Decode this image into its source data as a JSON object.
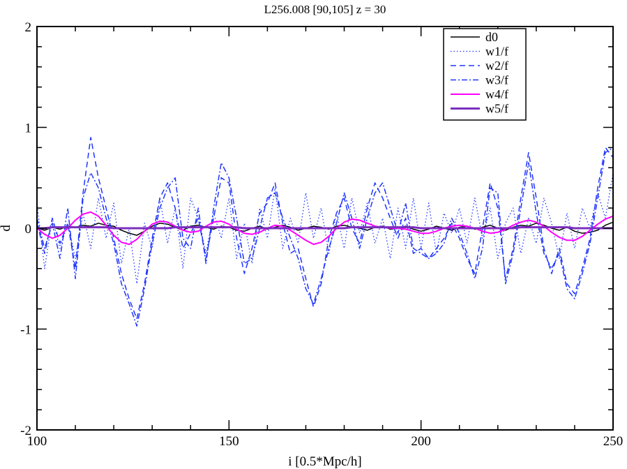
{
  "chart_data": {
    "type": "line",
    "title": "L256.008 [90,105] z = 30",
    "xlabel": "i [0.5*Mpc/h]",
    "ylabel": "d",
    "xlim": [
      100,
      250
    ],
    "ylim": [
      -2,
      2
    ],
    "x_ticks": [
      100,
      150,
      200,
      250
    ],
    "x_tick_labels": [
      "100",
      "150",
      "200",
      "250"
    ],
    "y_ticks": [
      -2,
      -1,
      0,
      1,
      2
    ],
    "y_tick_labels": [
      "-2",
      "-1",
      "0",
      "1",
      "2"
    ],
    "legend_position": "top-right",
    "x": [
      100,
      102,
      104,
      106,
      108,
      110,
      112,
      114,
      116,
      118,
      120,
      122,
      124,
      126,
      128,
      130,
      132,
      134,
      136,
      138,
      140,
      142,
      144,
      146,
      148,
      150,
      152,
      154,
      156,
      158,
      160,
      162,
      164,
      166,
      168,
      170,
      172,
      174,
      176,
      178,
      180,
      182,
      184,
      186,
      188,
      190,
      192,
      194,
      196,
      198,
      200,
      202,
      204,
      206,
      208,
      210,
      212,
      214,
      216,
      218,
      220,
      222,
      224,
      226,
      228,
      230,
      232,
      234,
      236,
      238,
      240,
      242,
      244,
      246,
      248,
      250
    ],
    "series": [
      {
        "name": "d0",
        "color": "#000000",
        "dash": "solid",
        "width": 1.5,
        "values": [
          0.0,
          -0.02,
          0.01,
          -0.01,
          0.02,
          0.01,
          0.03,
          0.02,
          0.05,
          0.03,
          0.02,
          -0.02,
          -0.05,
          -0.07,
          -0.03,
          0.02,
          0.05,
          0.04,
          0.01,
          -0.02,
          0.02,
          0.03,
          0.01,
          -0.01,
          0.02,
          0.01,
          -0.02,
          -0.03,
          0.0,
          0.02,
          -0.01,
          0.01,
          0.03,
          0.01,
          -0.02,
          0.0,
          0.02,
          0.01,
          -0.01,
          0.02,
          0.03,
          0.01,
          0.0,
          -0.02,
          0.01,
          0.02,
          -0.01,
          0.0,
          0.02,
          -0.01,
          -0.03,
          -0.01,
          0.02,
          0.0,
          -0.02,
          0.01,
          0.02,
          -0.01,
          0.01,
          0.03,
          0.0,
          -0.02,
          0.01,
          0.03,
          0.02,
          0.05,
          0.03,
          0.0,
          -0.02,
          0.01,
          -0.03,
          -0.05,
          -0.04,
          -0.02,
          0.03,
          0.06
        ]
      },
      {
        "name": "w1/f",
        "color": "#1f35ff",
        "dash": "1.5,3",
        "width": 1.3,
        "values": [
          0.25,
          -0.4,
          0.1,
          -0.2,
          0.05,
          -0.3,
          0.15,
          -0.2,
          0.3,
          -0.1,
          0.25,
          -0.35,
          0.0,
          -0.55,
          0.05,
          -0.2,
          0.3,
          -0.15,
          0.2,
          -0.4,
          0.3,
          0.1,
          -0.25,
          0.15,
          -0.1,
          0.3,
          -0.3,
          0.05,
          -0.35,
          0.2,
          -0.1,
          0.4,
          -0.2,
          0.1,
          -0.15,
          0.35,
          -0.1,
          0.2,
          -0.25,
          0.15,
          -0.2,
          0.3,
          -0.05,
          0.25,
          -0.15,
          0.1,
          -0.3,
          0.2,
          -0.2,
          0.3,
          -0.2,
          0.25,
          -0.25,
          0.15,
          -0.05,
          0.2,
          -0.15,
          0.3,
          -0.1,
          0.2,
          -0.3,
          0.05,
          0.2,
          -0.25,
          0.1,
          -0.15,
          0.3,
          0.05,
          -0.3,
          0.15,
          -0.2,
          0.2,
          0.0,
          0.35,
          0.1,
          0.55
        ]
      },
      {
        "name": "w2/f",
        "color": "#1f35ff",
        "dash": "8,5",
        "width": 1.5,
        "values": [
          0.05,
          -0.25,
          0.1,
          -0.15,
          0.05,
          -0.4,
          0.35,
          0.9,
          0.5,
          0.2,
          -0.1,
          -0.45,
          -0.7,
          -0.9,
          -0.55,
          -0.1,
          0.3,
          0.45,
          0.2,
          -0.2,
          -0.05,
          0.1,
          -0.3,
          0.1,
          0.5,
          0.45,
          -0.1,
          -0.45,
          -0.2,
          0.15,
          0.25,
          0.45,
          0.05,
          -0.25,
          -0.2,
          -0.5,
          -0.78,
          -0.55,
          -0.1,
          0.15,
          0.3,
          0.0,
          -0.15,
          0.2,
          0.45,
          0.3,
          0.1,
          -0.1,
          0.1,
          -0.25,
          -0.2,
          -0.3,
          -0.2,
          -0.1,
          0.05,
          -0.1,
          -0.3,
          -0.45,
          0.0,
          0.45,
          0.2,
          -0.5,
          -0.2,
          0.3,
          0.75,
          0.3,
          -0.2,
          -0.45,
          -0.2,
          -0.55,
          -0.65,
          -0.4,
          -0.1,
          0.4,
          0.8,
          0.7
        ]
      },
      {
        "name": "w3/f",
        "color": "#1f35ff",
        "dash": "8,3,2,3",
        "width": 1.5,
        "values": [
          0.1,
          -0.2,
          0.05,
          -0.3,
          0.2,
          -0.5,
          0.3,
          0.55,
          0.4,
          0.1,
          -0.15,
          -0.55,
          -0.75,
          -0.97,
          -0.6,
          -0.15,
          0.2,
          0.4,
          0.5,
          -0.1,
          -0.2,
          0.2,
          -0.35,
          0.2,
          0.65,
          0.5,
          0.1,
          -0.35,
          -0.3,
          0.0,
          0.3,
          0.35,
          0.1,
          -0.1,
          -0.3,
          -0.6,
          -0.75,
          -0.5,
          -0.2,
          0.05,
          0.35,
          0.1,
          -0.2,
          0.1,
          0.35,
          0.45,
          0.2,
          -0.05,
          0.25,
          -0.2,
          -0.25,
          -0.3,
          -0.25,
          -0.15,
          0.1,
          -0.05,
          -0.25,
          -0.5,
          -0.2,
          0.4,
          0.35,
          -0.55,
          -0.25,
          0.2,
          0.65,
          0.15,
          -0.25,
          -0.4,
          -0.25,
          -0.6,
          -0.7,
          -0.45,
          -0.15,
          0.3,
          0.75,
          0.8
        ]
      },
      {
        "name": "w4/f",
        "color": "#ff00ff",
        "dash": "solid",
        "width": 2,
        "values": [
          0.0,
          -0.06,
          -0.1,
          -0.07,
          0.0,
          0.08,
          0.14,
          0.16,
          0.12,
          0.03,
          -0.07,
          -0.14,
          -0.16,
          -0.11,
          -0.03,
          0.04,
          0.07,
          0.06,
          0.02,
          -0.02,
          -0.04,
          -0.03,
          0.02,
          0.06,
          0.07,
          0.04,
          -0.01,
          -0.05,
          -0.06,
          -0.04,
          0.0,
          0.03,
          0.02,
          -0.02,
          -0.07,
          -0.12,
          -0.16,
          -0.14,
          -0.08,
          0.0,
          0.06,
          0.09,
          0.08,
          0.05,
          0.02,
          0.01,
          0.0,
          0.0,
          -0.01,
          -0.03,
          -0.05,
          -0.05,
          -0.03,
          0.0,
          0.02,
          0.03,
          0.02,
          0.0,
          -0.03,
          -0.05,
          -0.04,
          -0.01,
          0.03,
          0.06,
          0.08,
          0.06,
          0.02,
          -0.04,
          -0.09,
          -0.12,
          -0.12,
          -0.08,
          -0.02,
          0.04,
          0.09,
          0.12
        ]
      },
      {
        "name": "w5/f",
        "color": "#7b2fbe",
        "dash": "solid",
        "width": 3,
        "values": [
          0.0,
          0.0,
          0.01,
          0.01,
          0.01,
          0.01,
          0.01,
          0.01,
          0.01,
          0.01,
          0.0,
          0.0,
          0.0,
          0.0,
          0.0,
          0.0,
          0.0,
          0.0,
          0.01,
          0.01,
          0.01,
          0.01,
          0.01,
          0.01,
          0.01,
          0.01,
          0.01,
          0.0,
          0.0,
          0.0,
          0.0,
          0.0,
          0.0,
          0.0,
          0.0,
          0.0,
          0.0,
          0.0,
          0.0,
          0.0,
          0.0,
          0.01,
          0.01,
          0.01,
          0.01,
          0.01,
          0.01,
          0.01,
          0.01,
          0.01,
          0.0,
          0.0,
          0.0,
          0.0,
          0.0,
          0.0,
          0.0,
          0.0,
          0.0,
          0.0,
          0.0,
          0.0,
          0.0,
          0.01,
          0.01,
          0.01,
          0.01,
          0.01,
          0.01,
          0.01,
          0.0,
          0.0,
          0.0,
          0.0,
          0.0,
          0.0
        ]
      }
    ]
  }
}
